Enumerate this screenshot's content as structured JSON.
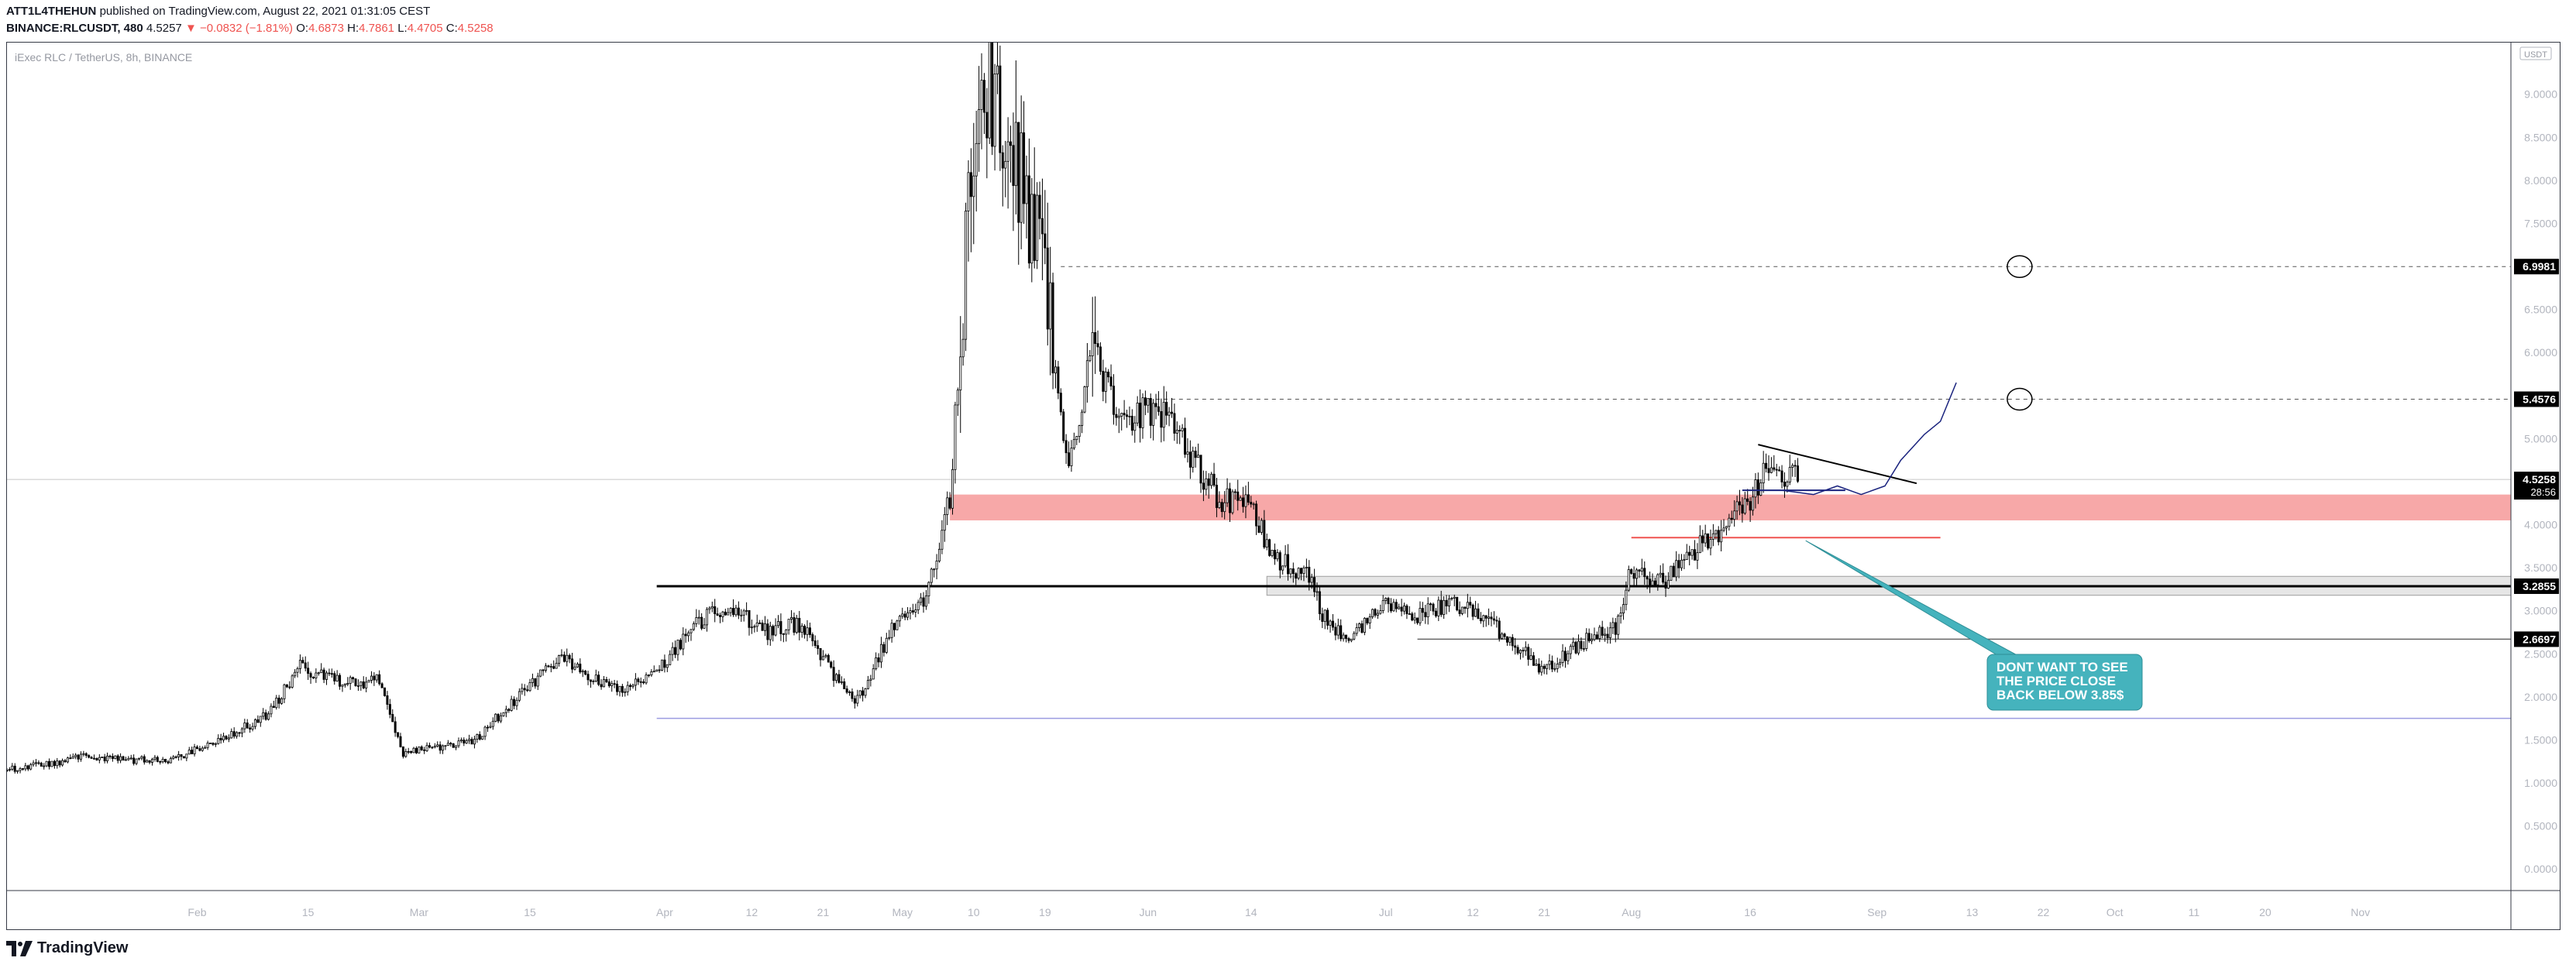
{
  "header": {
    "author": "ATT1L4THEHUN",
    "published": "published on TradingView.com, August 22, 2021 01:31:05 CEST",
    "symbol": "BINANCE:RLCUSDT, 480",
    "last": "4.5257",
    "change": "▼ −0.0832 (−1.81%)",
    "o_label": "O:",
    "o": "4.6873",
    "h_label": "H:",
    "h": "4.7861",
    "l_label": "L:",
    "l": "4.4705",
    "c_label": "C:",
    "c": "4.5258"
  },
  "footer": {
    "brand": "TradingView"
  },
  "colors": {
    "up": "#ffffff",
    "down": "#000000",
    "outline": "#000000",
    "zone": "#f7a3a3",
    "gray_zone": "#e6e6e6",
    "purple": "#9c9ce0",
    "red_line": "#ef5350",
    "navy": "#1a237e",
    "callout": "#45b3bd"
  },
  "chart_data": {
    "type": "candlestick",
    "title": "iExec RLC / TetherUS, 8h, BINANCE",
    "currency": "USDT",
    "ylim": [
      -0.25,
      9.6
    ],
    "xlim": [
      "2021-01-08",
      "2021-11-20"
    ],
    "y_ticks": [
      "0.0000",
      "0.5000",
      "1.0000",
      "1.5000",
      "2.0000",
      "2.5000",
      "3.0000",
      "3.5000",
      "4.0000",
      "4.5000",
      "5.0000",
      "5.5000",
      "6.0000",
      "6.5000",
      "7.0000",
      "7.5000",
      "8.0000",
      "8.5000",
      "9.0000"
    ],
    "x_ticks": [
      {
        "date": "2021-02-01",
        "label": "Feb"
      },
      {
        "date": "2021-02-15",
        "label": "15"
      },
      {
        "date": "2021-03-01",
        "label": "Mar"
      },
      {
        "date": "2021-03-15",
        "label": "15"
      },
      {
        "date": "2021-04-01",
        "label": "Apr"
      },
      {
        "date": "2021-04-12",
        "label": "12"
      },
      {
        "date": "2021-04-21",
        "label": "21"
      },
      {
        "date": "2021-05-01",
        "label": "May"
      },
      {
        "date": "2021-05-10",
        "label": "10"
      },
      {
        "date": "2021-05-19",
        "label": "19"
      },
      {
        "date": "2021-06-01",
        "label": "Jun"
      },
      {
        "date": "2021-06-14",
        "label": "14"
      },
      {
        "date": "2021-07-01",
        "label": "Jul"
      },
      {
        "date": "2021-07-12",
        "label": "12"
      },
      {
        "date": "2021-07-21",
        "label": "21"
      },
      {
        "date": "2021-08-01",
        "label": "Aug"
      },
      {
        "date": "2021-08-16",
        "label": "16"
      },
      {
        "date": "2021-09-01",
        "label": "Sep"
      },
      {
        "date": "2021-09-13",
        "label": "13"
      },
      {
        "date": "2021-09-22",
        "label": "22"
      },
      {
        "date": "2021-10-01",
        "label": "Oct"
      },
      {
        "date": "2021-10-11",
        "label": "11"
      },
      {
        "date": "2021-10-20",
        "label": "20"
      },
      {
        "date": "2021-11-01",
        "label": "Nov"
      }
    ],
    "price_path": [
      [
        "2021-01-08",
        1.15
      ],
      [
        "2021-01-18",
        1.3
      ],
      [
        "2021-01-28",
        1.25
      ],
      [
        "2021-02-03",
        1.45
      ],
      [
        "2021-02-10",
        1.8
      ],
      [
        "2021-02-14",
        2.35
      ],
      [
        "2021-02-20",
        2.15
      ],
      [
        "2021-02-24",
        2.2
      ],
      [
        "2021-02-27",
        1.35
      ],
      [
        "2021-03-03",
        1.4
      ],
      [
        "2021-03-08",
        1.5
      ],
      [
        "2021-03-15",
        2.15
      ],
      [
        "2021-03-19",
        2.45
      ],
      [
        "2021-03-23",
        2.2
      ],
      [
        "2021-03-27",
        2.05
      ],
      [
        "2021-03-31",
        2.3
      ],
      [
        "2021-04-05",
        2.85
      ],
      [
        "2021-04-09",
        3.05
      ],
      [
        "2021-04-14",
        2.75
      ],
      [
        "2021-04-18",
        2.85
      ],
      [
        "2021-04-21",
        2.45
      ],
      [
        "2021-04-25",
        1.9
      ],
      [
        "2021-04-30",
        2.85
      ],
      [
        "2021-05-04",
        3.15
      ],
      [
        "2021-05-07",
        4.3
      ],
      [
        "2021-05-10",
        8.6
      ],
      [
        "2021-05-13",
        9.15
      ],
      [
        "2021-05-17",
        7.7
      ],
      [
        "2021-05-19",
        6.9
      ],
      [
        "2021-05-22",
        4.6
      ],
      [
        "2021-05-25",
        6.1
      ],
      [
        "2021-05-28",
        5.25
      ],
      [
        "2021-06-01",
        5.3
      ],
      [
        "2021-06-04",
        5.25
      ],
      [
        "2021-06-07",
        4.7
      ],
      [
        "2021-06-10",
        4.3
      ],
      [
        "2021-06-14",
        4.2
      ],
      [
        "2021-06-17",
        3.6
      ],
      [
        "2021-06-21",
        3.45
      ],
      [
        "2021-06-23",
        2.95
      ],
      [
        "2021-06-26",
        2.7
      ],
      [
        "2021-07-01",
        3.05
      ],
      [
        "2021-07-05",
        2.95
      ],
      [
        "2021-07-09",
        3.1
      ],
      [
        "2021-07-13",
        2.95
      ],
      [
        "2021-07-17",
        2.65
      ],
      [
        "2021-07-21",
        2.3
      ],
      [
        "2021-07-25",
        2.6
      ],
      [
        "2021-07-30",
        2.8
      ],
      [
        "2021-08-01",
        3.5
      ],
      [
        "2021-08-05",
        3.35
      ],
      [
        "2021-08-09",
        3.7
      ],
      [
        "2021-08-13",
        4.0
      ],
      [
        "2021-08-16",
        4.3
      ],
      [
        "2021-08-18",
        4.7
      ],
      [
        "2021-08-20",
        4.6
      ],
      [
        "2021-08-22",
        4.53
      ]
    ],
    "price_label": {
      "value": 4.5258,
      "countdown": "28:56"
    },
    "horizontal_levels": [
      {
        "value": 6.9981,
        "label": "6.9981",
        "style": "dashed",
        "from": "2021-05-21"
      },
      {
        "value": 5.4576,
        "label": "5.4576",
        "style": "dashed",
        "from": "2021-06-01"
      },
      {
        "value": 3.2855,
        "label": "3.2855",
        "style": "solid",
        "from": "2021-03-31"
      },
      {
        "value": 2.6697,
        "label": "2.6697",
        "style": "solid",
        "from": "2021-07-05"
      },
      {
        "value": 1.75,
        "style": "purple",
        "from": "2021-03-31"
      },
      {
        "value": 3.85,
        "style": "red",
        "from": "2021-08-01",
        "to": "2021-09-09"
      }
    ],
    "zones": [
      {
        "from": "2021-05-07",
        "y_top": 4.35,
        "y_bottom": 4.05,
        "color": "red"
      },
      {
        "from": "2021-06-16",
        "y_top": 3.4,
        "y_bottom": 3.18,
        "color": "gray"
      }
    ],
    "trendline": {
      "x1": "2021-08-17",
      "y1": 4.93,
      "x2": "2021-09-06",
      "y2": 4.48
    },
    "projection": [
      [
        "2021-08-20",
        4.4
      ],
      [
        "2021-08-24",
        4.35
      ],
      [
        "2021-08-27",
        4.45
      ],
      [
        "2021-08-30",
        4.35
      ],
      [
        "2021-09-02",
        4.45
      ],
      [
        "2021-09-04",
        4.75
      ],
      [
        "2021-09-07",
        5.05
      ],
      [
        "2021-09-09",
        5.2
      ],
      [
        "2021-09-11",
        5.65
      ]
    ],
    "callout": {
      "text": [
        "DONT WANT TO SEE",
        "THE PRICE CLOSE",
        "BACK BELOW 3.85$"
      ],
      "pointer_date": "2021-08-23",
      "pointer_value": 3.85
    }
  }
}
